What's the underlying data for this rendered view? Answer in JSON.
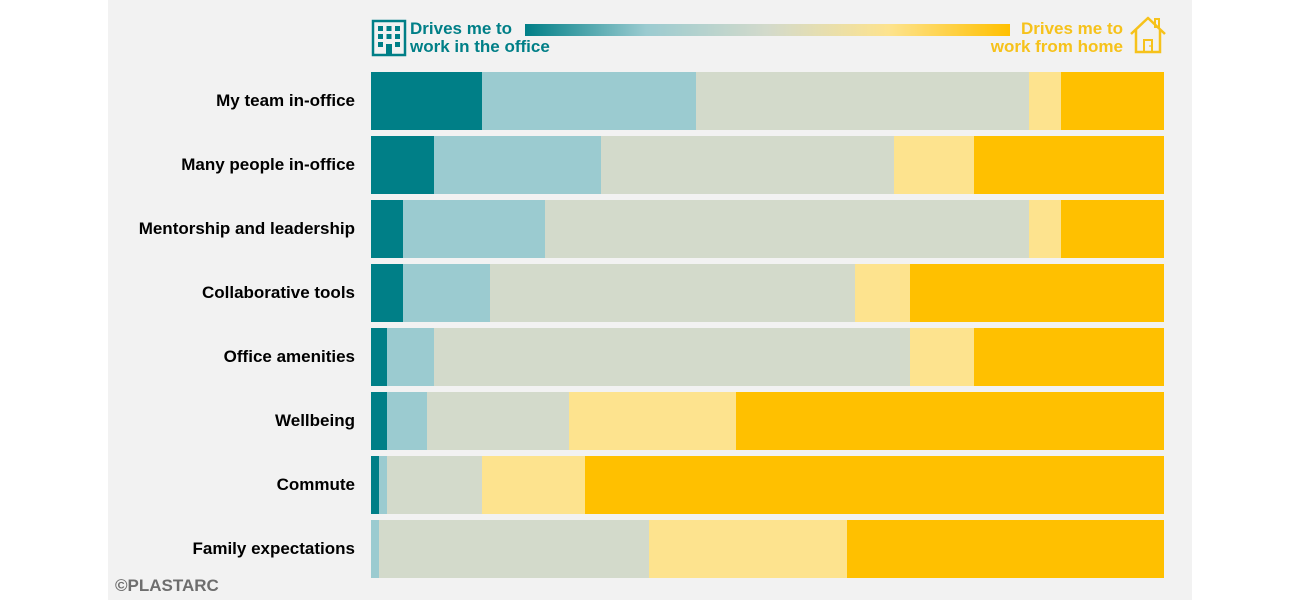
{
  "legend": {
    "left_label_line1": "Drives me to",
    "left_label_line2": "work in the office",
    "right_label_line1": "Drives me to",
    "right_label_line2": "work from home",
    "left_icon": "office-building-icon",
    "right_icon": "house-icon"
  },
  "copyright": "©PLASTARC",
  "colors": [
    "#007f87",
    "#9bcbd0",
    "#d3dacb",
    "#fde38e",
    "#ffc000"
  ],
  "chart_data": {
    "type": "bar",
    "orientation": "horizontal",
    "stacked": true,
    "normalized_percent": true,
    "categories": [
      "My team in-office",
      "Many people in-office",
      "Mentorship and leadership",
      "Collaborative tools",
      "Office amenities",
      "Wellbeing",
      "Commute",
      "Family expectations"
    ],
    "series": [
      {
        "values": [
          14,
          8,
          4,
          4,
          2,
          2,
          1,
          0
        ]
      },
      {
        "values": [
          27,
          21,
          18,
          11,
          6,
          5,
          1,
          1
        ]
      },
      {
        "values": [
          42,
          37,
          61,
          46,
          60,
          18,
          12,
          34
        ]
      },
      {
        "values": [
          4,
          10,
          4,
          7,
          8,
          21,
          13,
          25
        ]
      },
      {
        "values": [
          13,
          24,
          13,
          32,
          24,
          54,
          73,
          40
        ]
      }
    ],
    "xlim": [
      0,
      100
    ]
  }
}
